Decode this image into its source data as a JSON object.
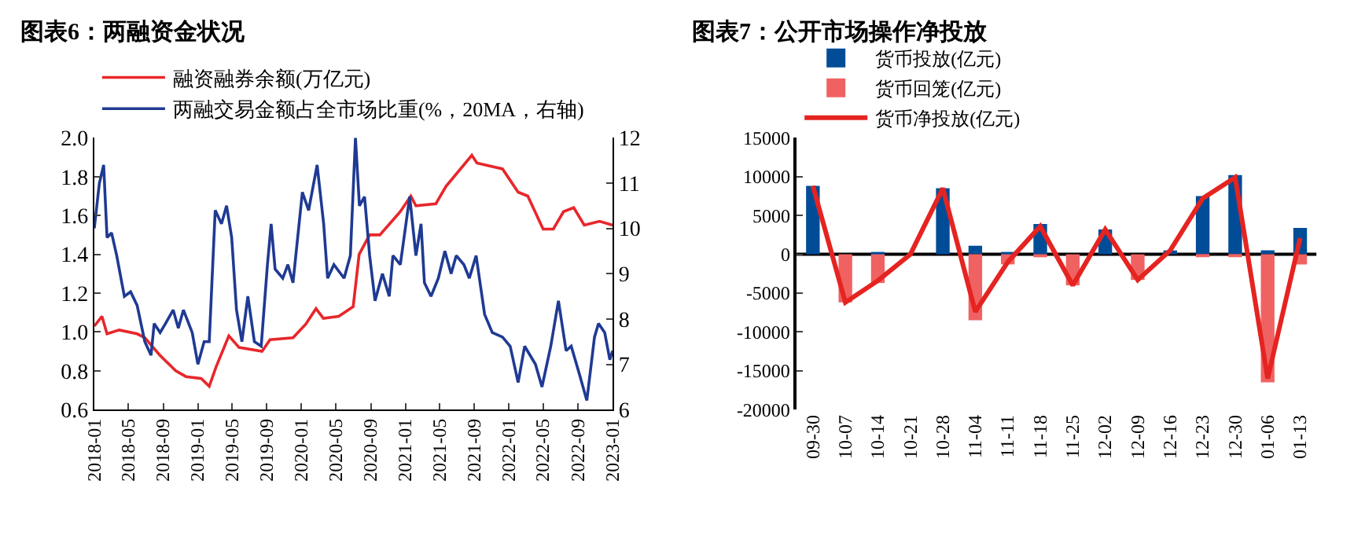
{
  "chart_data": [
    {
      "type": "line",
      "title": "图表6：两融资金状况",
      "legend": "top",
      "xlim": [
        "2018-01-01",
        "2023-01-01"
      ],
      "xticks": [
        "2018-01",
        "2018-05",
        "2018-09",
        "2019-01",
        "2019-05",
        "2019-09",
        "2020-01",
        "2020-05",
        "2020-09",
        "2021-01",
        "2021-05",
        "2021-09",
        "2022-01",
        "2022-05",
        "2022-09",
        "2023-01"
      ],
      "ylim": [
        0.6,
        2.0
      ],
      "yticks": [
        0.6,
        0.8,
        {
          "value": 1.0,
          "label": "1.0"
        },
        1.2,
        1.4,
        1.6,
        1.8,
        {
          "value": 2.0,
          "label": "2.0"
        }
      ],
      "y2lim": [
        6,
        12
      ],
      "y2ticks": [
        6,
        7,
        8,
        9,
        10,
        11,
        12
      ],
      "series": [
        {
          "name": "融资融券余额(万亿元)",
          "color": "#e8262b",
          "x": [
            "2018-01-01",
            "2018-01-28",
            "2018-02-15",
            "2018-03-30",
            "2018-06-01",
            "2018-06-28",
            "2018-08-20",
            "2018-10-15",
            "2018-11-20",
            "2019-01-13",
            "2019-02-10",
            "2019-03-06",
            "2019-04-20",
            "2019-05-26",
            "2019-08-15",
            "2019-09-12",
            "2019-12-02",
            "2020-01-16",
            "2020-02-21",
            "2020-03-18",
            "2020-05-11",
            "2020-07-01",
            "2020-07-22",
            "2020-08-28",
            "2020-10-03",
            "2020-12-14",
            "2021-01-20",
            "2021-02-07",
            "2021-04-18",
            "2021-05-24",
            "2021-08-23",
            "2021-09-10",
            "2021-12-09",
            "2022-02-02",
            "2022-03-08",
            "2022-05-01",
            "2022-06-06",
            "2022-07-12",
            "2022-08-17",
            "2022-09-23",
            "2022-11-16",
            "2023-01-01"
          ],
          "values": [
            1.03,
            1.08,
            0.99,
            1.01,
            0.99,
            0.97,
            0.88,
            0.8,
            0.77,
            0.76,
            0.72,
            0.82,
            0.98,
            0.92,
            0.9,
            0.96,
            0.97,
            1.04,
            1.12,
            1.07,
            1.08,
            1.13,
            1.4,
            1.5,
            1.5,
            1.62,
            1.7,
            1.65,
            1.66,
            1.75,
            1.91,
            1.87,
            1.84,
            1.72,
            1.7,
            1.53,
            1.53,
            1.62,
            1.64,
            1.55,
            1.57,
            1.55
          ]
        },
        {
          "name": "两融交易金额占全市场比重(%，20MA，右轴)",
          "color": "#1f3a93",
          "axis": "y2",
          "x": [
            "2018-01-01",
            "2018-01-19",
            "2018-02-03",
            "2018-02-15",
            "2018-03-03",
            "2018-03-21",
            "2018-04-17",
            "2018-05-09",
            "2018-06-01",
            "2018-06-28",
            "2018-07-20",
            "2018-07-31",
            "2018-08-21",
            "2018-09-09",
            "2018-10-06",
            "2018-10-24",
            "2018-11-11",
            "2018-12-12",
            "2019-01-01",
            "2019-01-23",
            "2019-02-10",
            "2019-03-03",
            "2019-03-25",
            "2019-04-12",
            "2019-04-30",
            "2019-05-17",
            "2019-06-05",
            "2019-06-26",
            "2019-07-19",
            "2019-08-12",
            "2019-09-03",
            "2019-09-16",
            "2019-09-30",
            "2019-10-27",
            "2019-11-14",
            "2019-12-02",
            "2020-01-04",
            "2020-01-26",
            "2020-02-25",
            "2020-03-19",
            "2020-04-02",
            "2020-04-24",
            "2020-05-30",
            "2020-06-21",
            "2020-07-09",
            "2020-07-23",
            "2020-08-10",
            "2020-08-28",
            "2020-09-16",
            "2020-10-12",
            "2020-11-05",
            "2020-11-18",
            "2020-12-14",
            "2021-01-16",
            "2021-02-07",
            "2021-02-25",
            "2021-03-09",
            "2021-04-01",
            "2021-04-27",
            "2021-05-20",
            "2021-06-11",
            "2021-06-29",
            "2021-07-26",
            "2021-08-14",
            "2021-09-07",
            "2021-10-07",
            "2021-11-03",
            "2021-12-09",
            "2022-01-05",
            "2022-02-02",
            "2022-02-25",
            "2022-04-04",
            "2022-04-27",
            "2022-05-28",
            "2022-06-24",
            "2022-07-21",
            "2022-08-08",
            "2022-09-05",
            "2022-10-02",
            "2022-10-29",
            "2022-11-12",
            "2022-12-04",
            "2022-12-22",
            "2023-01-01"
          ],
          "values": [
            10.0,
            11.0,
            11.4,
            9.8,
            9.9,
            9.4,
            8.5,
            8.6,
            8.3,
            7.5,
            7.2,
            7.9,
            7.7,
            7.9,
            8.2,
            7.8,
            8.2,
            7.7,
            7.0,
            7.5,
            7.5,
            10.4,
            10.1,
            10.5,
            9.8,
            8.2,
            7.5,
            8.5,
            7.5,
            7.4,
            9.2,
            10.1,
            9.1,
            8.9,
            9.2,
            8.8,
            10.8,
            10.4,
            11.4,
            10.1,
            8.9,
            9.2,
            8.9,
            9.4,
            12.0,
            10.5,
            10.7,
            9.4,
            8.4,
            9.0,
            8.5,
            9.4,
            9.2,
            10.7,
            9.4,
            10.1,
            8.8,
            8.5,
            8.9,
            9.5,
            9.0,
            9.4,
            9.2,
            8.9,
            9.4,
            8.1,
            7.7,
            7.6,
            7.4,
            6.6,
            7.4,
            7.0,
            6.5,
            7.4,
            8.4,
            7.3,
            7.4,
            6.8,
            6.2,
            7.6,
            7.9,
            7.7,
            7.1,
            7.3
          ]
        }
      ]
    },
    {
      "type": "bar",
      "title": "图表7：公开市场操作净投放",
      "legend": "top",
      "stacked": true,
      "categories": [
        "09-30",
        "10-07",
        "10-14",
        "10-21",
        "10-28",
        "11-04",
        "11-11",
        "11-18",
        "11-25",
        "12-02",
        "12-09",
        "12-16",
        "12-23",
        "12-30",
        "01-06",
        "01-13"
      ],
      "ylim": [
        -20000,
        15000
      ],
      "yticks": [
        -20000,
        -15000,
        -10000,
        -5000,
        0,
        5000,
        10000,
        15000
      ],
      "series": [
        {
          "name": "货币投放(亿元)",
          "color": "#004c97",
          "values": [
            8800,
            0,
            300,
            0,
            8500,
            1100,
            300,
            3900,
            0,
            3200,
            0,
            500,
            7500,
            10200,
            500,
            3400
          ]
        },
        {
          "name": "货币回笼(亿元)",
          "color": "#f06262",
          "values": [
            0,
            -6200,
            -3700,
            0,
            0,
            -8500,
            -1300,
            -300,
            -4000,
            0,
            -3300,
            0,
            -300,
            -300,
            -16500,
            -1300
          ]
        },
        {
          "name": "货币净投放(亿元)",
          "color": "#e52421",
          "type": "line",
          "values": [
            8800,
            -6200,
            -3400,
            0,
            8500,
            -7400,
            -1000,
            3600,
            -4000,
            3200,
            -3300,
            500,
            7200,
            9900,
            -16000,
            2100
          ]
        }
      ]
    }
  ]
}
